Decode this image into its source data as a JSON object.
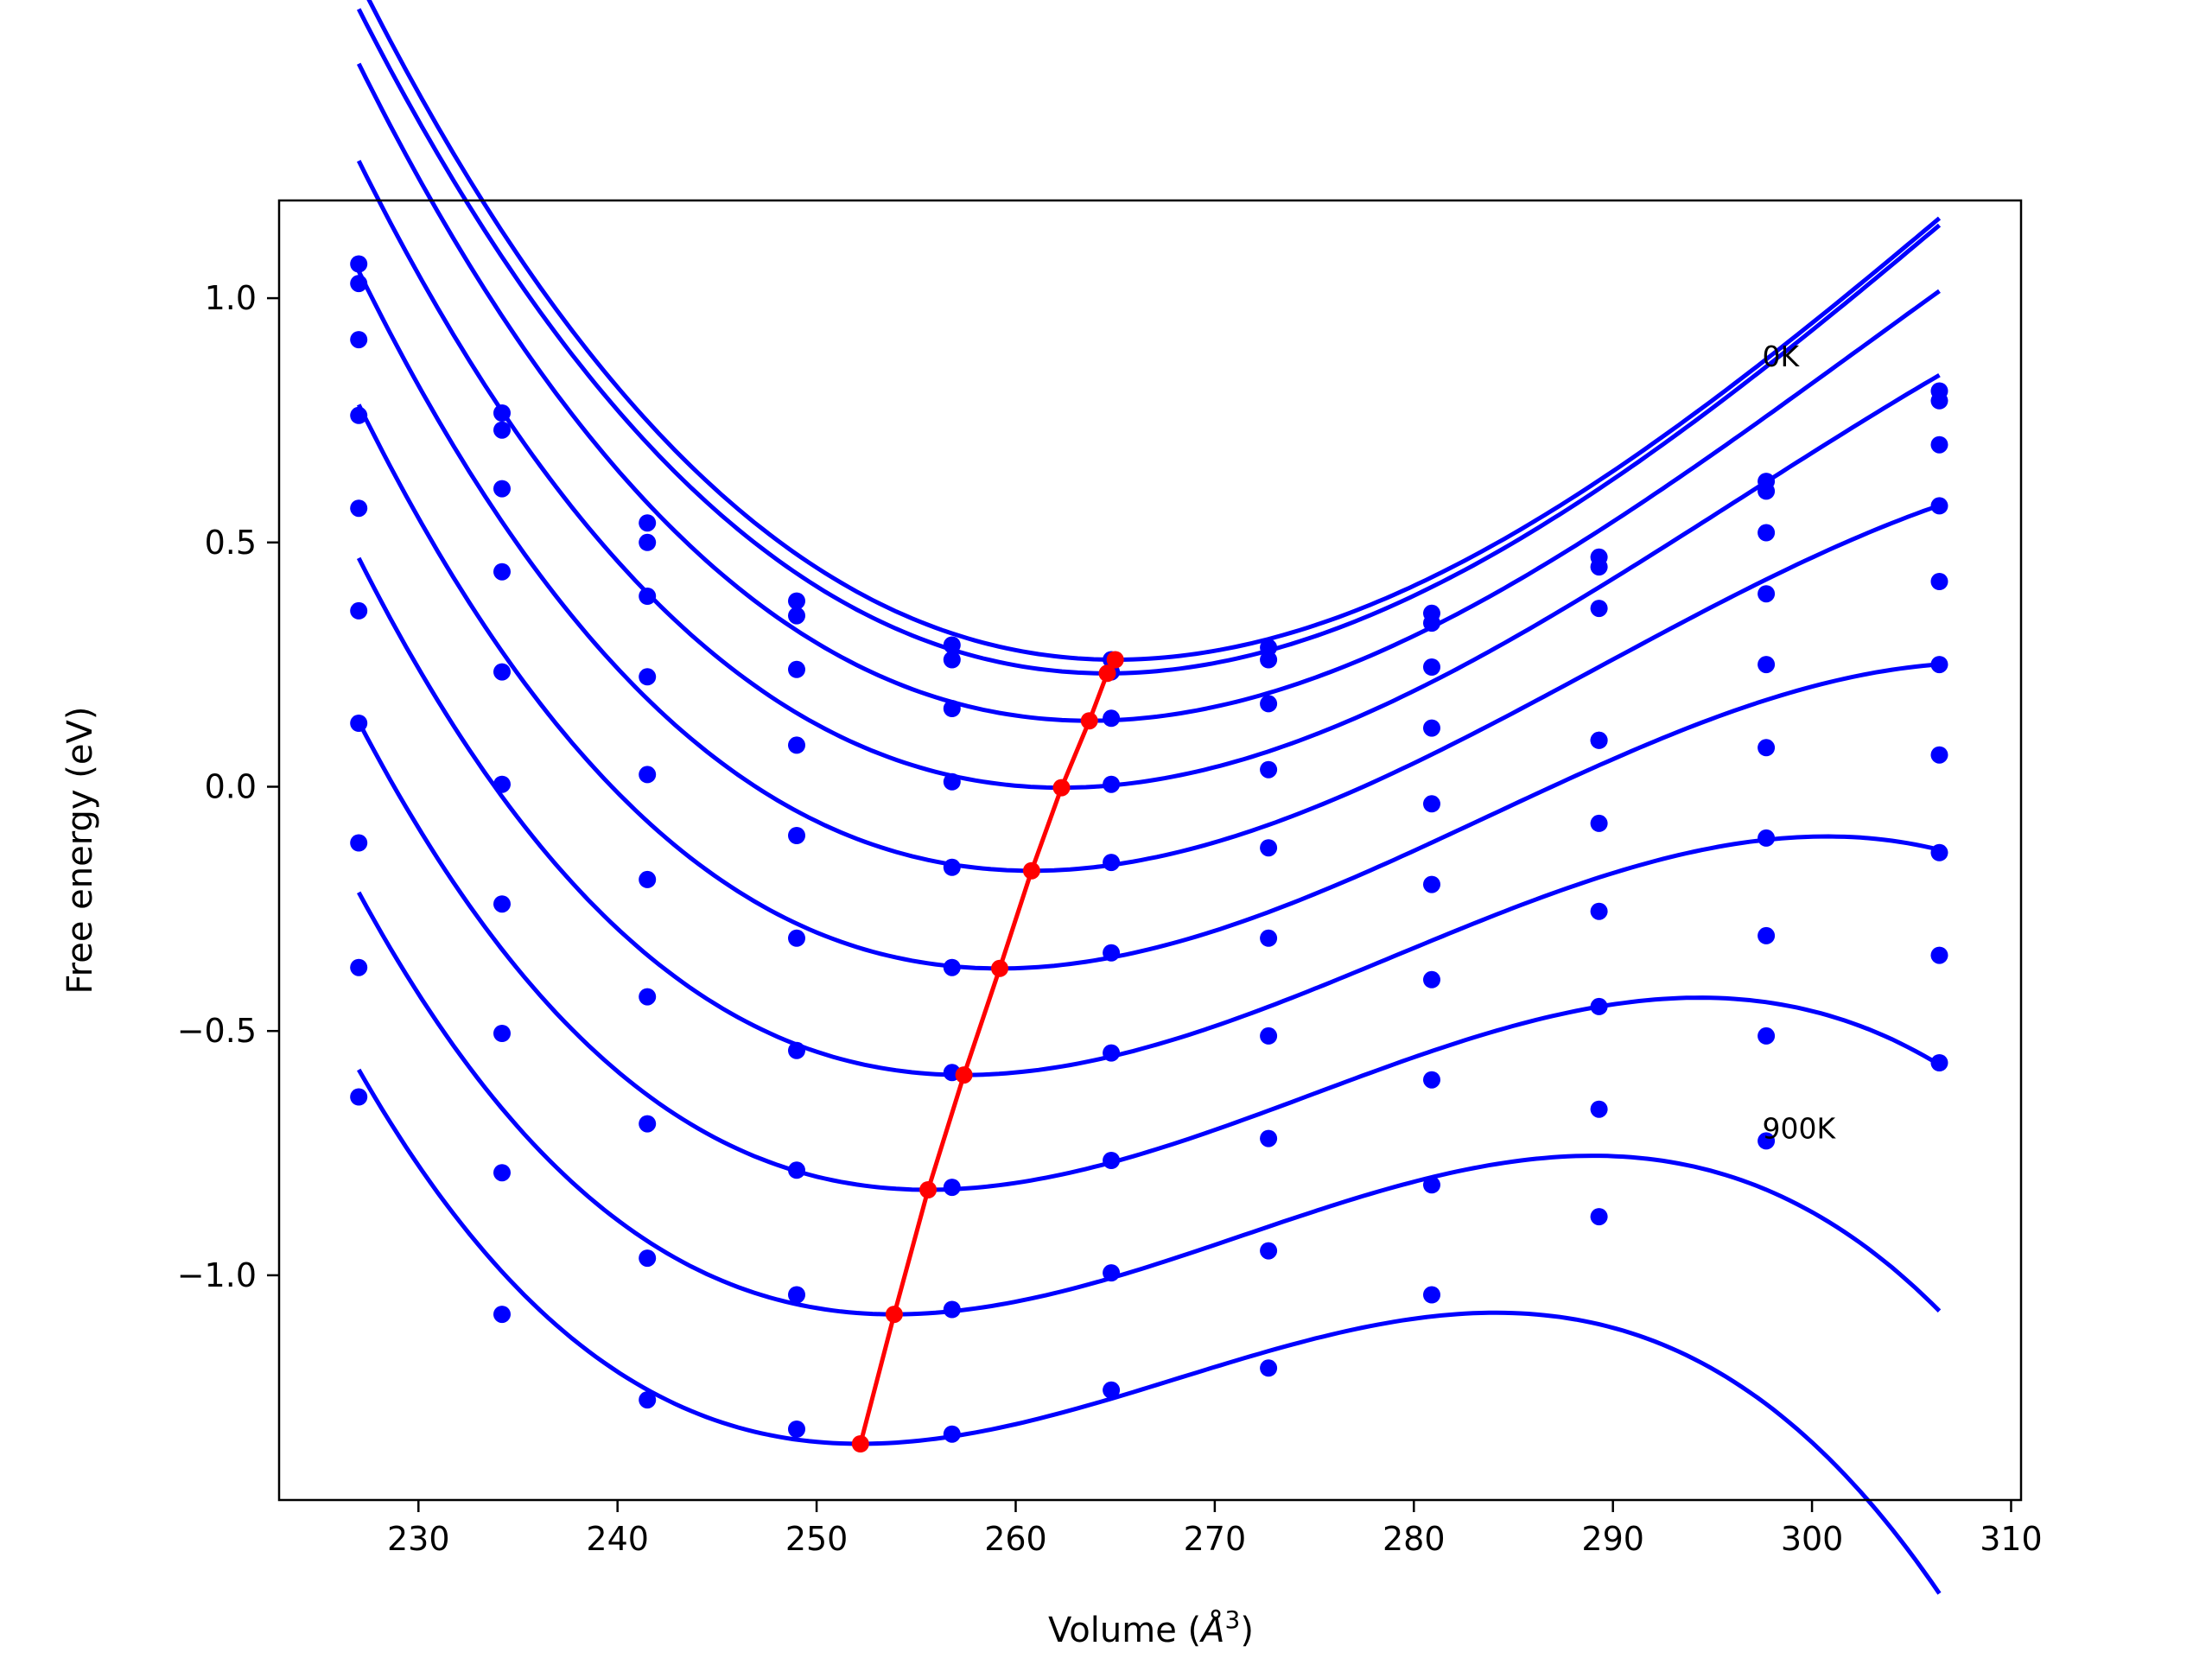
{
  "chart_data": {
    "type": "scatter",
    "title": "",
    "xlabel": "Volume (",
    "xlabel_symbol": "Å",
    "xlabel_sup": "3",
    "xlabel_end": ")",
    "ylabel": "Free energy (eV)",
    "xlim": [
      223,
      310.5
    ],
    "ylim": [
      -1.46,
      1.2
    ],
    "xticks": [
      "230",
      "240",
      "250",
      "260",
      "270",
      "280",
      "290",
      "300",
      "310"
    ],
    "yticks": [
      "1.0",
      "0.5",
      "0.0",
      "−0.5",
      "−1.0"
    ],
    "ytick_values": [
      1.0,
      0.5,
      0.0,
      -0.5,
      -1.0
    ],
    "grid": false,
    "annotations": [
      {
        "text": "0K",
        "x": 297.5,
        "y": 0.86
      },
      {
        "text": "900K",
        "x": 297.5,
        "y": -0.72
      }
    ],
    "volumes": [
      227.0,
      234.2,
      241.5,
      249.0,
      256.8,
      264.8,
      272.7,
      280.9,
      289.3,
      297.7,
      306.4
    ],
    "series": [
      {
        "color": "#0000ff",
        "points": [
          1.07,
          0.765,
          0.54,
          0.38,
          0.29,
          0.26,
          0.285,
          0.355,
          0.47,
          0.625,
          0.81
        ],
        "fit": {
          "v0": 265.0,
          "e0": 0.26,
          "b": 0.000755,
          "c": 5.5e-06
        }
      },
      {
        "color": "#0000ff",
        "points": [
          1.03,
          0.73,
          0.5,
          0.35,
          0.26,
          0.235,
          0.26,
          0.335,
          0.45,
          0.605,
          0.79
        ],
        "fit": {
          "v0": 264.6,
          "e0": 0.232,
          "b": 0.000755,
          "c": 5.5e-06
        }
      },
      {
        "color": "#0000ff",
        "points": [
          0.915,
          0.61,
          0.39,
          0.24,
          0.16,
          0.14,
          0.17,
          0.245,
          0.365,
          0.52,
          0.7
        ],
        "fit": {
          "v0": 263.7,
          "e0": 0.135,
          "b": 0.00076,
          "c": 6.5e-06
        }
      },
      {
        "color": "#0000ff",
        "points": [
          0.76,
          0.44,
          0.225,
          0.085,
          0.01,
          0.005,
          0.035,
          0.12,
          0.095,
          0.395,
          0.575
        ],
        "fit": {
          "v0": 262.3,
          "e0": -0.002,
          "b": 0.000765,
          "c": 7.5e-06
        }
      },
      {
        "color": "#0000ff",
        "points": [
          0.57,
          0.235,
          0.025,
          -0.1,
          -0.165,
          -0.155,
          -0.125,
          -0.035,
          0.095,
          0.25,
          0.42
        ],
        "fit": {
          "v0": 260.8,
          "e0": -0.172,
          "b": 0.00077,
          "c": 9e-06
        }
      },
      {
        "color": "#0000ff",
        "points": [
          0.36,
          0.005,
          -0.19,
          -0.31,
          -0.37,
          -0.34,
          -0.31,
          -0.2,
          -0.075,
          0.08,
          0.25
        ],
        "fit": {
          "v0": 259.2,
          "e0": -0.372,
          "b": 0.000775,
          "c": 1.05e-05
        }
      },
      {
        "color": "#0000ff",
        "points": [
          0.13,
          -0.24,
          -0.43,
          -0.54,
          -0.585,
          -0.545,
          -0.51,
          -0.395,
          -0.255,
          -0.105,
          0.065
        ],
        "fit": {
          "v0": 257.4,
          "e0": -0.59,
          "b": 0.00078,
          "c": 1.2e-05
        }
      },
      {
        "color": "#0000ff",
        "points": [
          -0.115,
          -0.505,
          -0.69,
          -0.785,
          -0.82,
          -0.765,
          -0.72,
          -0.6,
          -0.45,
          -0.305,
          -0.135
        ],
        "fit": {
          "v0": 255.6,
          "e0": -0.825,
          "b": 0.000785,
          "c": 1.35e-05
        }
      },
      {
        "color": "#0000ff",
        "points": [
          -0.37,
          -0.79,
          -0.965,
          -1.04,
          -1.07,
          -0.995,
          -0.95,
          -0.815,
          -0.66,
          -0.51,
          -0.345
        ],
        "fit": {
          "v0": 253.9,
          "e0": -1.08,
          "b": 0.00079,
          "c": 1.5e-05
        }
      },
      {
        "color": "#0000ff",
        "points": [
          -0.635,
          -1.08,
          -1.255,
          -1.315,
          -1.325,
          -1.235,
          -1.19,
          -1.04,
          -0.88,
          -0.725,
          -0.565
        ],
        "fit": {
          "v0": 252.2,
          "e0": -1.345,
          "b": 0.00079,
          "c": 1.65e-05
        }
      }
    ],
    "minimum_line": {
      "color": "#ff0000",
      "x": [
        265.0,
        264.6,
        263.7,
        262.3,
        260.8,
        259.2,
        257.4,
        255.6,
        253.9,
        252.2
      ],
      "y": [
        0.26,
        0.232,
        0.135,
        -0.002,
        -0.172,
        -0.372,
        -0.59,
        -0.825,
        -1.08,
        -1.345
      ]
    }
  }
}
